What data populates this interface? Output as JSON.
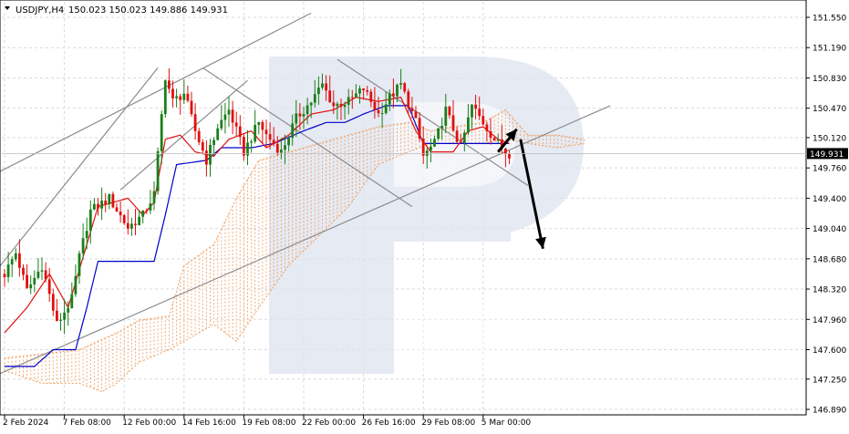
{
  "header": {
    "symbol": "USDJPY,H4",
    "ohlc": "150.023 150.023 149.886 149.931"
  },
  "colors": {
    "bull": "#1a7f1a",
    "bear": "#e01010",
    "tenkan": "#e01010",
    "kijun": "#0000cc",
    "cloud": "#f0a060",
    "trendline": "#8c8c8c",
    "arrow": "#000000",
    "grid": "#d9d9d9",
    "price_tag_bg": "#000000",
    "watermark": "#dde3ef"
  },
  "watermark": {
    "icon": "rp-logo-watermark"
  },
  "chart_data": {
    "type": "candlestick",
    "title": "USDJPY,H4",
    "ylim": [
      146.89,
      151.55
    ],
    "y_ticks": [
      151.55,
      151.19,
      150.83,
      150.47,
      150.12,
      149.76,
      149.4,
      149.04,
      148.68,
      148.32,
      147.96,
      147.6,
      147.25,
      146.89
    ],
    "y_tick_labels": [
      "151.550",
      "151.190",
      "150.830",
      "150.470",
      "150.120",
      "149.760",
      "149.400",
      "149.040",
      "148.680",
      "148.320",
      "147.960",
      "147.600",
      "147.250",
      "146.890"
    ],
    "current_price": 149.931,
    "current_price_label": "149.931",
    "x_tick_labels": [
      "2 Feb 2024",
      "7 Feb 08:00",
      "12 Feb 00:00",
      "14 Feb 16:00",
      "19 Feb 08:00",
      "22 Feb 00:00",
      "26 Feb 16:00",
      "29 Feb 08:00",
      "5 Mar 00:00"
    ],
    "x_tick_bars": [
      0,
      16,
      32,
      48,
      64,
      80,
      96,
      112,
      128
    ],
    "bar_count": 136,
    "price_path": [
      [
        0,
        148.5
      ],
      [
        3,
        148.75
      ],
      [
        6,
        148.3
      ],
      [
        10,
        148.6
      ],
      [
        14,
        147.9
      ],
      [
        18,
        148.2
      ],
      [
        20,
        148.7
      ],
      [
        23,
        149.25
      ],
      [
        28,
        149.4
      ],
      [
        33,
        149.05
      ],
      [
        37,
        149.2
      ],
      [
        40,
        149.45
      ],
      [
        43,
        150.85
      ],
      [
        45,
        150.55
      ],
      [
        48,
        150.65
      ],
      [
        51,
        150.2
      ],
      [
        54,
        149.85
      ],
      [
        57,
        150.25
      ],
      [
        60,
        150.45
      ],
      [
        64,
        149.95
      ],
      [
        68,
        150.3
      ],
      [
        70,
        150.15
      ],
      [
        74,
        149.95
      ],
      [
        78,
        150.35
      ],
      [
        82,
        150.55
      ],
      [
        85,
        150.75
      ],
      [
        88,
        150.5
      ],
      [
        92,
        150.55
      ],
      [
        96,
        150.7
      ],
      [
        100,
        150.4
      ],
      [
        103,
        150.6
      ],
      [
        106,
        150.75
      ],
      [
        110,
        150.3
      ],
      [
        112,
        149.9
      ],
      [
        115,
        150.05
      ],
      [
        118,
        150.45
      ],
      [
        122,
        150.0
      ],
      [
        125,
        150.5
      ],
      [
        128,
        150.3
      ],
      [
        131,
        150.1
      ],
      [
        134,
        149.95
      ],
      [
        135,
        149.931
      ]
    ],
    "tenkan_path": [
      [
        0,
        147.8
      ],
      [
        6,
        148.1
      ],
      [
        12,
        148.5
      ],
      [
        17,
        148.1
      ],
      [
        21,
        148.7
      ],
      [
        25,
        149.3
      ],
      [
        33,
        149.4
      ],
      [
        37,
        149.2
      ],
      [
        40,
        149.35
      ],
      [
        43,
        150.1
      ],
      [
        47,
        150.15
      ],
      [
        51,
        149.95
      ],
      [
        56,
        149.9
      ],
      [
        60,
        150.1
      ],
      [
        66,
        150.2
      ],
      [
        70,
        150.0
      ],
      [
        76,
        150.15
      ],
      [
        82,
        150.4
      ],
      [
        88,
        150.45
      ],
      [
        94,
        150.6
      ],
      [
        100,
        150.55
      ],
      [
        106,
        150.6
      ],
      [
        110,
        150.2
      ],
      [
        114,
        149.95
      ],
      [
        120,
        149.95
      ],
      [
        124,
        150.2
      ],
      [
        128,
        150.25
      ],
      [
        132,
        150.1
      ],
      [
        135,
        150.05
      ]
    ],
    "kijun_path": [
      [
        0,
        147.4
      ],
      [
        8,
        147.4
      ],
      [
        13,
        147.6
      ],
      [
        19,
        147.6
      ],
      [
        22,
        148.1
      ],
      [
        25,
        148.65
      ],
      [
        35,
        148.65
      ],
      [
        40,
        148.65
      ],
      [
        43,
        149.2
      ],
      [
        46,
        149.8
      ],
      [
        54,
        149.85
      ],
      [
        58,
        150.0
      ],
      [
        66,
        150.0
      ],
      [
        72,
        150.05
      ],
      [
        80,
        150.2
      ],
      [
        86,
        150.3
      ],
      [
        91,
        150.3
      ],
      [
        96,
        150.4
      ],
      [
        102,
        150.5
      ],
      [
        108,
        150.5
      ],
      [
        112,
        150.05
      ],
      [
        120,
        150.05
      ],
      [
        126,
        150.05
      ],
      [
        130,
        150.05
      ],
      [
        135,
        150.05
      ]
    ],
    "cloud": {
      "upper": [
        [
          0,
          147.5
        ],
        [
          10,
          147.55
        ],
        [
          20,
          147.6
        ],
        [
          30,
          147.8
        ],
        [
          36,
          147.95
        ],
        [
          44,
          148.0
        ],
        [
          48,
          148.6
        ],
        [
          56,
          148.85
        ],
        [
          62,
          149.4
        ],
        [
          68,
          149.85
        ],
        [
          76,
          149.95
        ],
        [
          84,
          150.05
        ],
        [
          92,
          150.15
        ],
        [
          100,
          150.25
        ],
        [
          108,
          150.3
        ],
        [
          114,
          150.2
        ],
        [
          120,
          150.25
        ],
        [
          128,
          150.3
        ],
        [
          134,
          150.45
        ],
        [
          140,
          150.15
        ],
        [
          148,
          150.15
        ],
        [
          155,
          150.1
        ]
      ],
      "lower": [
        [
          0,
          147.35
        ],
        [
          10,
          147.2
        ],
        [
          20,
          147.2
        ],
        [
          26,
          147.1
        ],
        [
          30,
          147.2
        ],
        [
          36,
          147.45
        ],
        [
          44,
          147.6
        ],
        [
          48,
          147.7
        ],
        [
          56,
          147.9
        ],
        [
          62,
          147.7
        ],
        [
          68,
          148.1
        ],
        [
          76,
          148.6
        ],
        [
          84,
          148.95
        ],
        [
          92,
          149.3
        ],
        [
          100,
          149.8
        ],
        [
          108,
          149.95
        ],
        [
          114,
          150.05
        ],
        [
          120,
          150.05
        ],
        [
          128,
          150.05
        ],
        [
          134,
          150.1
        ],
        [
          140,
          150.05
        ],
        [
          148,
          150.0
        ],
        [
          155,
          150.05
        ]
      ]
    },
    "trendlines": [
      {
        "from": [
          -2,
          149.7
        ],
        "to": [
          82,
          151.6
        ]
      },
      {
        "from": [
          -2,
          148.55
        ],
        "to": [
          41,
          150.95
        ]
      },
      {
        "from": [
          31,
          149.5
        ],
        "to": [
          65,
          150.8
        ]
      },
      {
        "from": [
          -2,
          147.3
        ],
        "to": [
          162,
          150.5
        ]
      },
      {
        "from": [
          53,
          150.95
        ],
        "to": [
          109,
          149.3
        ]
      },
      {
        "from": [
          89,
          151.05
        ],
        "to": [
          140,
          149.55
        ]
      }
    ],
    "forecast_arrows": [
      {
        "from": [
          132,
          149.95
        ],
        "to": [
          137,
          150.22
        ]
      },
      {
        "from": [
          138,
          150.1
        ],
        "to": [
          144,
          148.8
        ]
      }
    ],
    "legend": "none",
    "grid": true
  }
}
